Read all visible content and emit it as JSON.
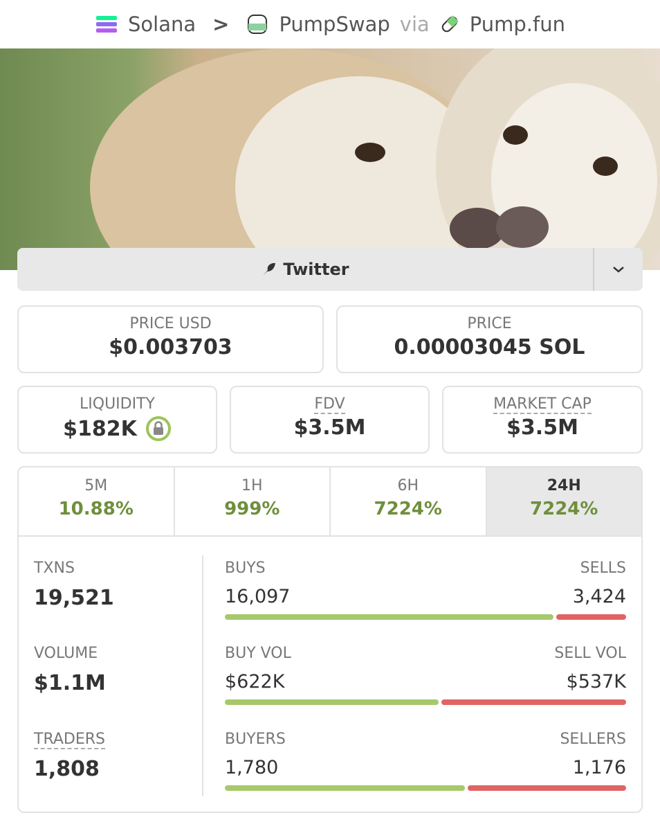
{
  "breadcrumb": {
    "chain": "Solana",
    "separator": ">",
    "dex": "PumpSwap",
    "via": "via",
    "launchpad": "Pump.fun"
  },
  "social": {
    "label": "Twitter"
  },
  "prices": [
    {
      "label": "PRICE USD",
      "value": "$0.003703"
    },
    {
      "label": "PRICE",
      "value": "0.00003045 SOL"
    }
  ],
  "metrics": [
    {
      "label": "LIQUIDITY",
      "value": "$182K"
    },
    {
      "label": "FDV",
      "value": "$3.5M"
    },
    {
      "label": "MARKET CAP",
      "value": "$3.5M"
    }
  ],
  "timeframes": [
    {
      "label": "5M",
      "change": "10.88%"
    },
    {
      "label": "1H",
      "change": "999%"
    },
    {
      "label": "6H",
      "change": "7224%"
    },
    {
      "label": "24H",
      "change": "7224%"
    }
  ],
  "selected_timeframe": 3,
  "totals": [
    {
      "label": "TXNS",
      "value": "19,521"
    },
    {
      "label": "VOLUME",
      "value": "$1.1M"
    },
    {
      "label": "TRADERS",
      "value": "1,808"
    }
  ],
  "splits": [
    {
      "buy_label": "BUYS",
      "buy": {
        "value": 16097,
        "label": "16,097"
      },
      "sell_label": "SELLS",
      "sell": {
        "value": 3424,
        "label": "3,424"
      }
    },
    {
      "buy_label": "BUY VOL",
      "buy": {
        "value": 622000,
        "label": "$622K"
      },
      "sell_label": "SELL VOL",
      "sell": {
        "value": 537000,
        "label": "$537K"
      }
    },
    {
      "buy_label": "BUYERS",
      "buy": {
        "value": 1780,
        "label": "1,780"
      },
      "sell_label": "SELLERS",
      "sell": {
        "value": 1176,
        "label": "1,176"
      }
    }
  ]
}
